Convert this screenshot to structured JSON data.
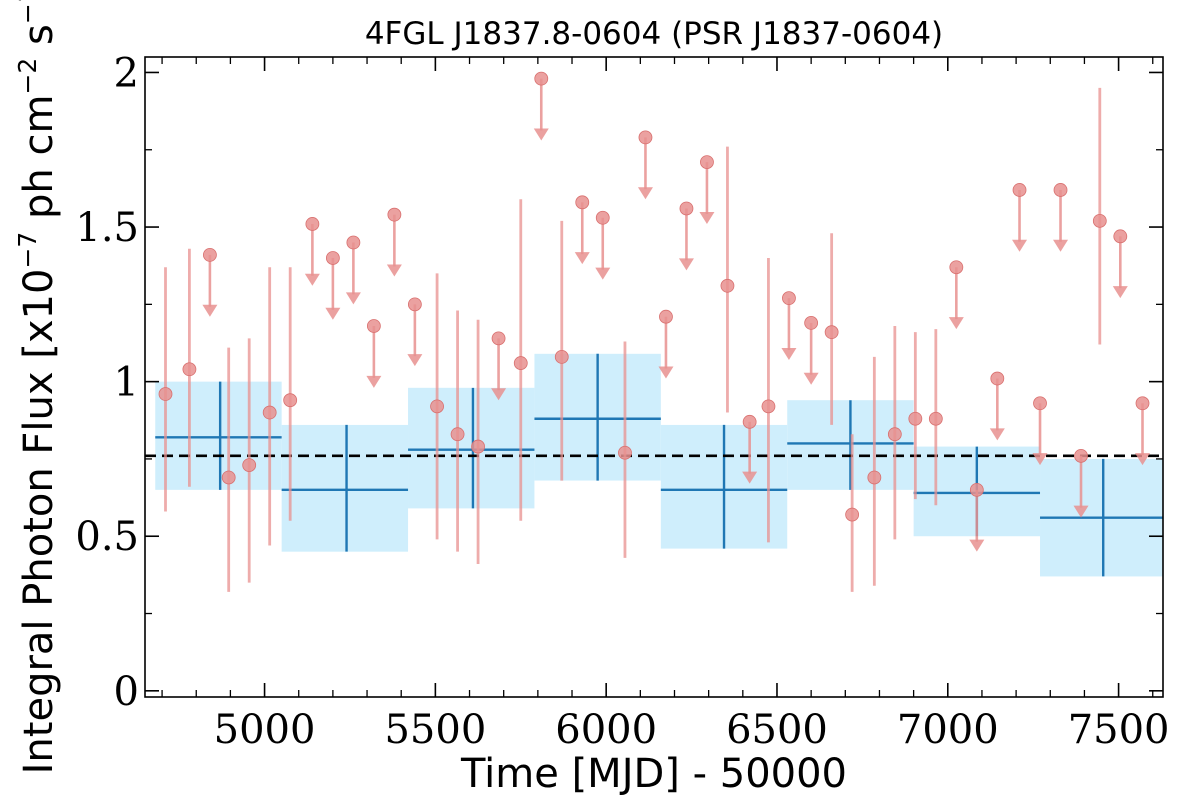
{
  "chart_data": {
    "type": "scatter",
    "title": "4FGL J1837.8-0604 (PSR J1837-0604)",
    "xlabel": "Time [MJD] - 50000",
    "ylabel": {
      "prefix": "Integral Photon Flux [x10",
      "exp1": "−7",
      "mid": " ph cm",
      "exp2": "−2",
      "mid2": " s",
      "exp3": "−1",
      "suffix": "]"
    },
    "xlim": [
      4650,
      7630
    ],
    "ylim": [
      -0.02,
      2.05
    ],
    "xticks": [
      {
        "value": 5000,
        "label": "5000"
      },
      {
        "value": 5500,
        "label": "5500"
      },
      {
        "value": 6000,
        "label": "6000"
      },
      {
        "value": 6500,
        "label": "6500"
      },
      {
        "value": 7000,
        "label": "7000"
      },
      {
        "value": 7500,
        "label": "7500"
      }
    ],
    "yticks": [
      {
        "value": 0,
        "label": "0"
      },
      {
        "value": 0.5,
        "label": "0.5"
      },
      {
        "value": 1,
        "label": "1"
      },
      {
        "value": 1.5,
        "label": "1.5"
      },
      {
        "value": 2,
        "label": "2"
      }
    ],
    "x_minor_step": 100,
    "y_minor_step": 0.25,
    "grid": false,
    "mean_flux": 0.76,
    "colors": {
      "short_bin": "#e8908f",
      "long_bin_line": "#1f77b4",
      "long_bin_fill": "#cfeefc",
      "mean_line": "#000000"
    },
    "series": [
      {
        "kind": "short_bins_detections",
        "points": [
          {
            "x": 4710,
            "y": 0.96,
            "ylo": 0.58,
            "yhi": 1.37
          },
          {
            "x": 4780,
            "y": 1.04,
            "ylo": 0.66,
            "yhi": 1.43
          },
          {
            "x": 4895,
            "y": 0.69,
            "ylo": 0.32,
            "yhi": 1.11
          },
          {
            "x": 4955,
            "y": 0.73,
            "ylo": 0.35,
            "yhi": 1.14
          },
          {
            "x": 5015,
            "y": 0.9,
            "ylo": 0.47,
            "yhi": 1.37
          },
          {
            "x": 5075,
            "y": 0.94,
            "ylo": 0.55,
            "yhi": 1.37
          },
          {
            "x": 5505,
            "y": 0.92,
            "ylo": 0.49,
            "yhi": 1.35
          },
          {
            "x": 5565,
            "y": 0.83,
            "ylo": 0.45,
            "yhi": 1.23
          },
          {
            "x": 5625,
            "y": 0.79,
            "ylo": 0.41,
            "yhi": 1.2
          },
          {
            "x": 5750,
            "y": 1.06,
            "ylo": 0.55,
            "yhi": 1.59
          },
          {
            "x": 5870,
            "y": 1.08,
            "ylo": 0.68,
            "yhi": 1.52
          },
          {
            "x": 6055,
            "y": 0.77,
            "ylo": 0.43,
            "yhi": 1.13
          },
          {
            "x": 6355,
            "y": 1.31,
            "ylo": 0.9,
            "yhi": 1.76
          },
          {
            "x": 6475,
            "y": 0.92,
            "ylo": 0.48,
            "yhi": 1.4
          },
          {
            "x": 6660,
            "y": 1.16,
            "ylo": 0.86,
            "yhi": 1.48
          },
          {
            "x": 6720,
            "y": 0.57,
            "ylo": 0.32,
            "yhi": 0.83
          },
          {
            "x": 6785,
            "y": 0.69,
            "ylo": 0.34,
            "yhi": 1.08
          },
          {
            "x": 6845,
            "y": 0.83,
            "ylo": 0.49,
            "yhi": 1.18
          },
          {
            "x": 6905,
            "y": 0.88,
            "ylo": 0.62,
            "yhi": 1.16
          },
          {
            "x": 6965,
            "y": 0.88,
            "ylo": 0.6,
            "yhi": 1.17
          },
          {
            "x": 7445,
            "y": 1.52,
            "ylo": 1.12,
            "yhi": 1.95
          }
        ]
      },
      {
        "kind": "short_bins_upper_limits",
        "points": [
          {
            "x": 4840,
            "y": 1.41
          },
          {
            "x": 5140,
            "y": 1.51
          },
          {
            "x": 5200,
            "y": 1.4
          },
          {
            "x": 5260,
            "y": 1.45
          },
          {
            "x": 5320,
            "y": 1.18
          },
          {
            "x": 5380,
            "y": 1.54
          },
          {
            "x": 5440,
            "y": 1.25
          },
          {
            "x": 5685,
            "y": 1.14
          },
          {
            "x": 5810,
            "y": 1.98
          },
          {
            "x": 5930,
            "y": 1.58
          },
          {
            "x": 5990,
            "y": 1.53
          },
          {
            "x": 6115,
            "y": 1.79
          },
          {
            "x": 6175,
            "y": 1.21
          },
          {
            "x": 6235,
            "y": 1.56
          },
          {
            "x": 6295,
            "y": 1.71
          },
          {
            "x": 6420,
            "y": 0.87
          },
          {
            "x": 6535,
            "y": 1.27
          },
          {
            "x": 6600,
            "y": 1.19
          },
          {
            "x": 7025,
            "y": 1.37
          },
          {
            "x": 7085,
            "y": 0.65
          },
          {
            "x": 7145,
            "y": 1.01
          },
          {
            "x": 7210,
            "y": 1.62
          },
          {
            "x": 7270,
            "y": 0.93
          },
          {
            "x": 7330,
            "y": 1.62
          },
          {
            "x": 7390,
            "y": 0.76
          },
          {
            "x": 7505,
            "y": 1.47
          },
          {
            "x": 7570,
            "y": 0.93
          }
        ]
      },
      {
        "kind": "long_bins",
        "bins": [
          {
            "x0": 4680,
            "x1": 5050,
            "xc": 4870,
            "y": 0.82,
            "ylo": 0.65,
            "yhi": 1.0
          },
          {
            "x0": 5050,
            "x1": 5420,
            "xc": 5240,
            "y": 0.65,
            "ylo": 0.45,
            "yhi": 0.86
          },
          {
            "x0": 5420,
            "x1": 5790,
            "xc": 5610,
            "y": 0.78,
            "ylo": 0.59,
            "yhi": 0.98
          },
          {
            "x0": 5790,
            "x1": 6160,
            "xc": 5975,
            "y": 0.88,
            "ylo": 0.68,
            "yhi": 1.09
          },
          {
            "x0": 6160,
            "x1": 6530,
            "xc": 6345,
            "y": 0.65,
            "ylo": 0.46,
            "yhi": 0.86
          },
          {
            "x0": 6530,
            "x1": 6900,
            "xc": 6715,
            "y": 0.8,
            "ylo": 0.65,
            "yhi": 0.94
          },
          {
            "x0": 6900,
            "x1": 7270,
            "xc": 7085,
            "y": 0.64,
            "ylo": 0.5,
            "yhi": 0.79
          },
          {
            "x0": 7270,
            "x1": 7640,
            "xc": 7455,
            "y": 0.56,
            "ylo": 0.37,
            "yhi": 0.75
          }
        ]
      }
    ]
  }
}
